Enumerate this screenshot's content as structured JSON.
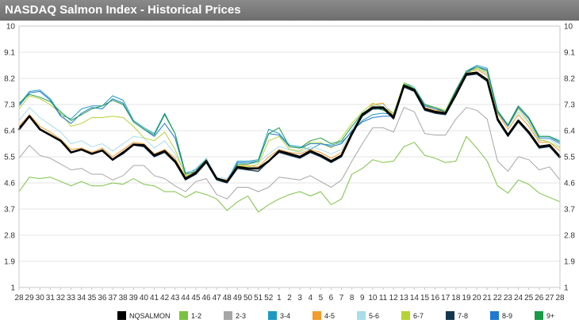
{
  "title": "NASDAQ Salmon Index - Historical Prices",
  "colors": {
    "title_bg": "#7a7a7a",
    "grid": "#e4e4e4"
  },
  "chart_data": {
    "type": "line",
    "title": "NASDAQ Salmon Index - Historical Prices",
    "xlabel": "",
    "ylabel": "",
    "ylim": [
      1,
      10
    ],
    "yticks": [
      "1",
      "1.9",
      "2.8",
      "3.7",
      "4.6",
      "5.5",
      "6.4",
      "7.3",
      "8.2",
      "9.1",
      "10"
    ],
    "grid": "horizontal",
    "legend_position": "bottom",
    "categories": [
      "28",
      "29",
      "30",
      "31",
      "32",
      "33",
      "34",
      "35",
      "36",
      "37",
      "38",
      "39",
      "40",
      "41",
      "42",
      "43",
      "44",
      "45",
      "46",
      "47",
      "48",
      "49",
      "50",
      "51",
      "52",
      "1",
      "2",
      "3",
      "4",
      "5",
      "6",
      "7",
      "8",
      "9",
      "10",
      "11",
      "12",
      "13",
      "14",
      "15",
      "16",
      "17",
      "18",
      "19",
      "20",
      "21",
      "22",
      "23",
      "24",
      "25",
      "26",
      "27",
      "28"
    ],
    "series": [
      {
        "name": "NQSALMON",
        "color": "#000000",
        "width": 2.6,
        "values": [
          6.45,
          6.9,
          6.45,
          6.25,
          6.05,
          5.65,
          5.75,
          5.6,
          5.72,
          5.4,
          5.65,
          5.92,
          5.9,
          5.55,
          5.7,
          5.35,
          4.75,
          4.95,
          5.35,
          4.75,
          4.65,
          5.15,
          5.1,
          5.1,
          5.35,
          5.7,
          5.6,
          5.5,
          5.7,
          5.55,
          5.35,
          5.55,
          6.3,
          6.95,
          7.2,
          7.2,
          6.85,
          7.95,
          7.8,
          7.15,
          7.05,
          7.0,
          7.65,
          8.35,
          8.4,
          8.15,
          6.8,
          6.25,
          6.75,
          6.35,
          5.85,
          5.9,
          5.5
        ]
      },
      {
        "name": "1-2",
        "color": "#7cc242",
        "width": 1,
        "values": [
          4.3,
          4.8,
          4.75,
          4.8,
          4.65,
          4.5,
          4.65,
          4.5,
          4.5,
          4.6,
          4.55,
          4.75,
          4.55,
          4.5,
          4.3,
          4.3,
          4.1,
          4.3,
          4.2,
          4.05,
          3.65,
          3.95,
          4.15,
          3.6,
          3.85,
          4.05,
          4.2,
          4.3,
          4.15,
          4.3,
          3.85,
          4.05,
          4.9,
          5.1,
          5.4,
          5.3,
          5.35,
          5.85,
          6.0,
          5.55,
          5.45,
          5.3,
          5.35,
          6.2,
          5.8,
          5.35,
          4.5,
          4.25,
          4.7,
          4.55,
          4.25,
          4.1,
          3.95
        ]
      },
      {
        "name": "2-3",
        "color": "#a6a6a6",
        "width": 1,
        "values": [
          5.45,
          5.9,
          5.55,
          5.45,
          5.25,
          5.05,
          5.1,
          4.9,
          4.9,
          4.7,
          4.85,
          5.2,
          5.2,
          4.85,
          4.75,
          4.5,
          4.3,
          4.65,
          4.75,
          4.2,
          4.05,
          4.45,
          4.45,
          4.3,
          4.45,
          4.8,
          4.75,
          4.7,
          4.85,
          4.65,
          4.45,
          4.7,
          5.35,
          5.95,
          6.5,
          6.5,
          6.35,
          7.2,
          7.05,
          6.3,
          6.25,
          6.25,
          6.8,
          7.2,
          7.1,
          6.8,
          5.35,
          5.0,
          5.5,
          5.4,
          5.05,
          5.15,
          4.7
        ]
      },
      {
        "name": "3-4",
        "color": "#1e9ac2",
        "width": 1,
        "values": [
          7.3,
          7.75,
          7.8,
          7.5,
          6.95,
          6.8,
          7.15,
          7.25,
          7.25,
          7.6,
          7.45,
          6.75,
          6.5,
          6.3,
          7.0,
          6.3,
          4.95,
          5.05,
          5.45,
          4.75,
          4.7,
          5.35,
          5.35,
          5.4,
          6.45,
          6.3,
          5.9,
          5.85,
          5.75,
          5.95,
          5.9,
          6.0,
          6.35,
          6.75,
          6.95,
          7.0,
          6.95,
          8.05,
          7.9,
          7.3,
          7.2,
          7.1,
          7.8,
          8.45,
          8.65,
          8.55,
          7.1,
          6.6,
          7.25,
          6.85,
          6.2,
          6.2,
          6.05
        ]
      },
      {
        "name": "4-5",
        "color": "#f39c2b",
        "width": 1,
        "values": [
          6.55,
          6.95,
          6.55,
          6.35,
          6.1,
          5.75,
          5.8,
          5.65,
          5.8,
          5.5,
          5.75,
          6.0,
          5.95,
          5.6,
          5.75,
          5.45,
          4.8,
          5.0,
          5.4,
          4.75,
          4.7,
          5.2,
          5.2,
          5.15,
          5.5,
          5.75,
          5.65,
          5.6,
          5.75,
          5.65,
          5.45,
          5.65,
          6.35,
          6.95,
          7.3,
          7.35,
          6.9,
          7.95,
          7.85,
          7.2,
          7.1,
          7.05,
          7.75,
          8.4,
          8.5,
          8.3,
          7.0,
          6.45,
          6.95,
          6.55,
          6.0,
          6.0,
          5.7
        ]
      },
      {
        "name": "5-6",
        "color": "#a8dde9",
        "width": 1,
        "values": [
          6.75,
          7.2,
          6.85,
          6.6,
          6.35,
          5.95,
          6.05,
          5.85,
          5.95,
          5.7,
          5.95,
          6.2,
          6.15,
          5.8,
          6.05,
          5.6,
          4.9,
          5.1,
          5.45,
          4.8,
          4.75,
          5.3,
          5.25,
          5.3,
          5.6,
          5.85,
          5.75,
          5.65,
          5.85,
          5.75,
          5.6,
          5.75,
          6.45,
          7.0,
          7.25,
          7.3,
          7.0,
          8.0,
          7.9,
          7.25,
          7.2,
          7.1,
          7.8,
          8.45,
          8.55,
          8.35,
          7.05,
          6.55,
          7.05,
          6.65,
          6.05,
          6.1,
          5.85
        ]
      },
      {
        "name": "6-7",
        "color": "#b5d334",
        "width": 1,
        "values": [
          7.15,
          7.6,
          7.5,
          7.3,
          7.0,
          6.55,
          6.65,
          6.85,
          6.85,
          6.9,
          6.85,
          6.55,
          6.15,
          6.05,
          6.35,
          5.75,
          4.85,
          4.95,
          5.4,
          4.75,
          4.65,
          5.2,
          5.15,
          5.25,
          6.05,
          6.2,
          5.75,
          5.7,
          6.0,
          6.0,
          5.8,
          6.15,
          6.65,
          7.05,
          7.35,
          7.2,
          7.0,
          8.05,
          7.85,
          7.25,
          7.2,
          7.1,
          7.8,
          8.35,
          8.55,
          8.4,
          7.05,
          6.55,
          7.15,
          6.7,
          6.1,
          6.0,
          5.8
        ]
      },
      {
        "name": "7-8",
        "color": "#12384f",
        "width": 1.4,
        "values": [
          6.5,
          6.9,
          6.45,
          6.25,
          6.05,
          5.65,
          5.75,
          5.6,
          5.7,
          5.4,
          5.6,
          5.9,
          5.85,
          5.5,
          5.65,
          5.3,
          4.7,
          4.9,
          5.3,
          4.7,
          4.6,
          5.1,
          5.05,
          5.0,
          5.35,
          5.65,
          5.55,
          5.45,
          5.65,
          5.5,
          5.3,
          5.5,
          6.25,
          6.9,
          7.15,
          7.15,
          6.8,
          7.9,
          7.75,
          7.1,
          7.0,
          6.95,
          7.6,
          8.3,
          8.35,
          8.1,
          6.75,
          6.2,
          6.7,
          6.3,
          5.8,
          5.85,
          5.45
        ]
      },
      {
        "name": "8-9",
        "color": "#1f78d1",
        "width": 1,
        "values": [
          7.25,
          7.7,
          7.75,
          7.45,
          6.9,
          6.65,
          7.0,
          7.2,
          7.15,
          7.5,
          7.35,
          6.7,
          6.45,
          6.2,
          6.65,
          6.15,
          4.9,
          5.0,
          5.4,
          4.7,
          4.65,
          5.3,
          5.3,
          5.35,
          6.3,
          6.25,
          5.85,
          5.8,
          5.95,
          5.95,
          5.85,
          5.95,
          6.4,
          6.7,
          6.85,
          6.9,
          6.9,
          7.95,
          7.8,
          7.25,
          7.15,
          7.05,
          7.75,
          8.4,
          8.6,
          8.5,
          7.05,
          6.55,
          7.2,
          6.8,
          6.15,
          6.15,
          5.95
        ]
      },
      {
        "name": "9+",
        "color": "#1a9a45",
        "width": 1,
        "values": [
          7.35,
          7.65,
          7.55,
          7.4,
          7.05,
          6.75,
          6.95,
          7.15,
          7.25,
          7.45,
          7.3,
          6.7,
          6.45,
          6.25,
          6.95,
          6.3,
          4.9,
          5.0,
          5.4,
          4.7,
          4.65,
          5.25,
          5.25,
          5.35,
          6.3,
          6.5,
          5.85,
          5.8,
          6.05,
          6.15,
          5.95,
          6.05,
          6.55,
          7.0,
          7.2,
          7.1,
          6.95,
          8.0,
          7.85,
          7.3,
          7.2,
          7.05,
          7.8,
          8.45,
          8.6,
          8.45,
          7.05,
          6.6,
          7.25,
          6.85,
          6.2,
          6.2,
          6.0
        ]
      }
    ]
  }
}
